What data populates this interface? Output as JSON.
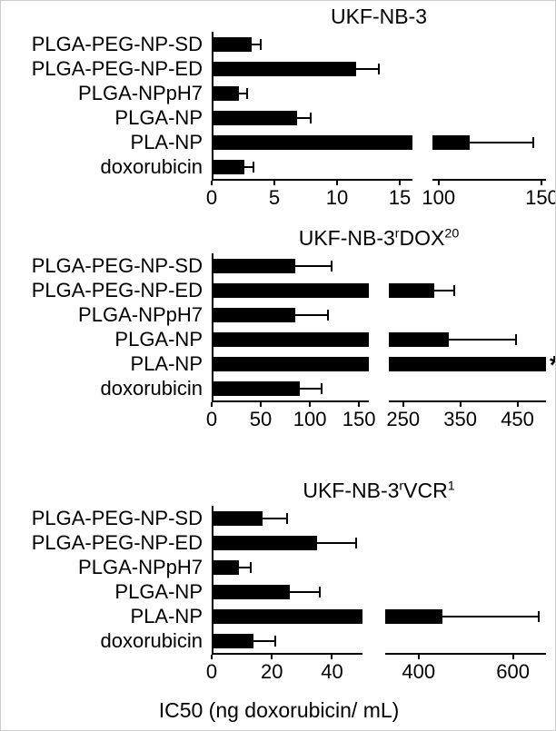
{
  "figure": {
    "xlabel": "IC50 (ng doxorubicin/ mL)"
  },
  "colors": {
    "bar": "#000000",
    "axis": "#000000",
    "text": "#000000",
    "background": "#ffffff"
  },
  "chart_data": [
    {
      "type": "bar",
      "orientation": "horizontal",
      "title": "UKF-NB-3",
      "title_parts": [
        {
          "text": "UKF-NB-3",
          "sup": false
        }
      ],
      "categories": [
        "PLGA-PEG-NP-SD",
        "PLGA-PEG-NP-ED",
        "PLGA-NPpH7",
        "PLGA-NP",
        "PLA-NP",
        "doxorubicin"
      ],
      "values": [
        3.2,
        11.5,
        2.2,
        6.8,
        115,
        2.6
      ],
      "error_upper": [
        3.9,
        13.3,
        2.8,
        7.9,
        146,
        3.3
      ],
      "off_scale": [
        false,
        false,
        false,
        false,
        false,
        false
      ],
      "significance": [
        "",
        "",
        "",
        "",
        "",
        ""
      ],
      "axis_break": true,
      "grid": false,
      "legend": null,
      "segments": [
        {
          "range": [
            0,
            16
          ],
          "ticks": [
            0,
            5,
            10,
            15
          ],
          "frac": [
            0,
            0.6
          ]
        },
        {
          "range": [
            97,
            152
          ],
          "ticks": [
            100,
            150
          ],
          "frac": [
            0.66,
            1
          ]
        }
      ]
    },
    {
      "type": "bar",
      "orientation": "horizontal",
      "title": "UKF-NB-3rDOX20",
      "title_parts": [
        {
          "text": "UKF-NB-3",
          "sup": false
        },
        {
          "text": "r",
          "sup": true
        },
        {
          "text": "DOX",
          "sup": false
        },
        {
          "text": "20",
          "sup": true
        }
      ],
      "categories": [
        "PLGA-PEG-NP-SD",
        "PLGA-PEG-NP-ED",
        "PLGA-NPpH7",
        "PLGA-NP",
        "PLA-NP",
        "doxorubicin"
      ],
      "values": [
        85,
        305,
        85,
        330,
        505,
        90
      ],
      "error_upper": [
        122,
        340,
        118,
        448,
        null,
        112
      ],
      "off_scale": [
        false,
        false,
        false,
        false,
        true,
        false
      ],
      "significance": [
        "",
        "",
        "",
        "",
        "*",
        ""
      ],
      "axis_break": true,
      "grid": false,
      "legend": null,
      "segments": [
        {
          "range": [
            0,
            160
          ],
          "ticks": [
            0,
            50,
            100,
            150
          ],
          "frac": [
            0,
            0.47
          ]
        },
        {
          "range": [
            225,
            500
          ],
          "ticks": [
            250,
            350,
            450
          ],
          "frac": [
            0.53,
            1
          ]
        }
      ]
    },
    {
      "type": "bar",
      "orientation": "horizontal",
      "title": "UKF-NB-3rVCR1",
      "title_parts": [
        {
          "text": "UKF-NB-3",
          "sup": false
        },
        {
          "text": "r",
          "sup": true
        },
        {
          "text": "VCR",
          "sup": false
        },
        {
          "text": "1",
          "sup": true
        }
      ],
      "categories": [
        "PLGA-PEG-NP-SD",
        "PLGA-PEG-NP-ED",
        "PLGA-NPpH7",
        "PLGA-NP",
        "PLA-NP",
        "doxorubicin"
      ],
      "values": [
        17,
        35,
        9,
        26,
        450,
        14
      ],
      "error_upper": [
        25,
        48,
        13,
        36,
        655,
        21
      ],
      "off_scale": [
        false,
        false,
        false,
        false,
        false,
        false
      ],
      "significance": [
        "",
        "",
        "",
        "",
        "",
        ""
      ],
      "axis_break": true,
      "grid": false,
      "legend": null,
      "segments": [
        {
          "range": [
            0,
            50
          ],
          "ticks": [
            0,
            20,
            40
          ],
          "frac": [
            0,
            0.45
          ]
        },
        {
          "range": [
            330,
            670
          ],
          "ticks": [
            400,
            600
          ],
          "frac": [
            0.52,
            1
          ]
        }
      ]
    }
  ]
}
